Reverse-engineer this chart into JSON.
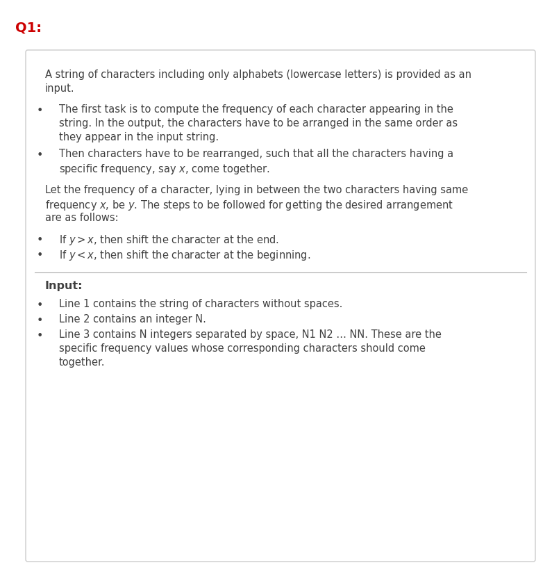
{
  "title": "Q1:",
  "title_color": "#cc0000",
  "title_fontsize": 14,
  "background_color": "#ffffff",
  "box_border_color": "#cccccc",
  "text_color": "#404040",
  "body_fontsize": 10.5,
  "bold_fontsize": 11.5,
  "intro_line1": "A string of characters including only alphabets (lowercase letters) is provided as an",
  "intro_line2": "input.",
  "b1_line1": "The first task is to compute the frequency of each character appearing in the",
  "b1_line2": "string. In the output, the characters have to be arranged in the same order as",
  "b1_line3": "they appear in the input string.",
  "b2_line1": "Then characters have to be rearranged, such that all the characters having a",
  "b2_line2": "specific frequency, say $x$, come together.",
  "m_line1": "Let the frequency of a character, lying in between the two characters having same",
  "m_line2": "frequency $x$, be $y$. The steps to be followed for getting the desired arrangement",
  "m_line3": "are as follows:",
  "c1_line1": "If $y > x$, then shift the character at the end.",
  "c2_line1": "If $y < x$, then shift the character at the beginning.",
  "input_label": "Input:",
  "i1": "Line 1 contains the string of characters without spaces.",
  "i2": "Line 2 contains an integer N.",
  "i3_line1": "Line 3 contains N integers separated by space, N1 N2 … NN. These are the",
  "i3_line2": "specific frequency values whose corresponding characters should come",
  "i3_line3": "together."
}
